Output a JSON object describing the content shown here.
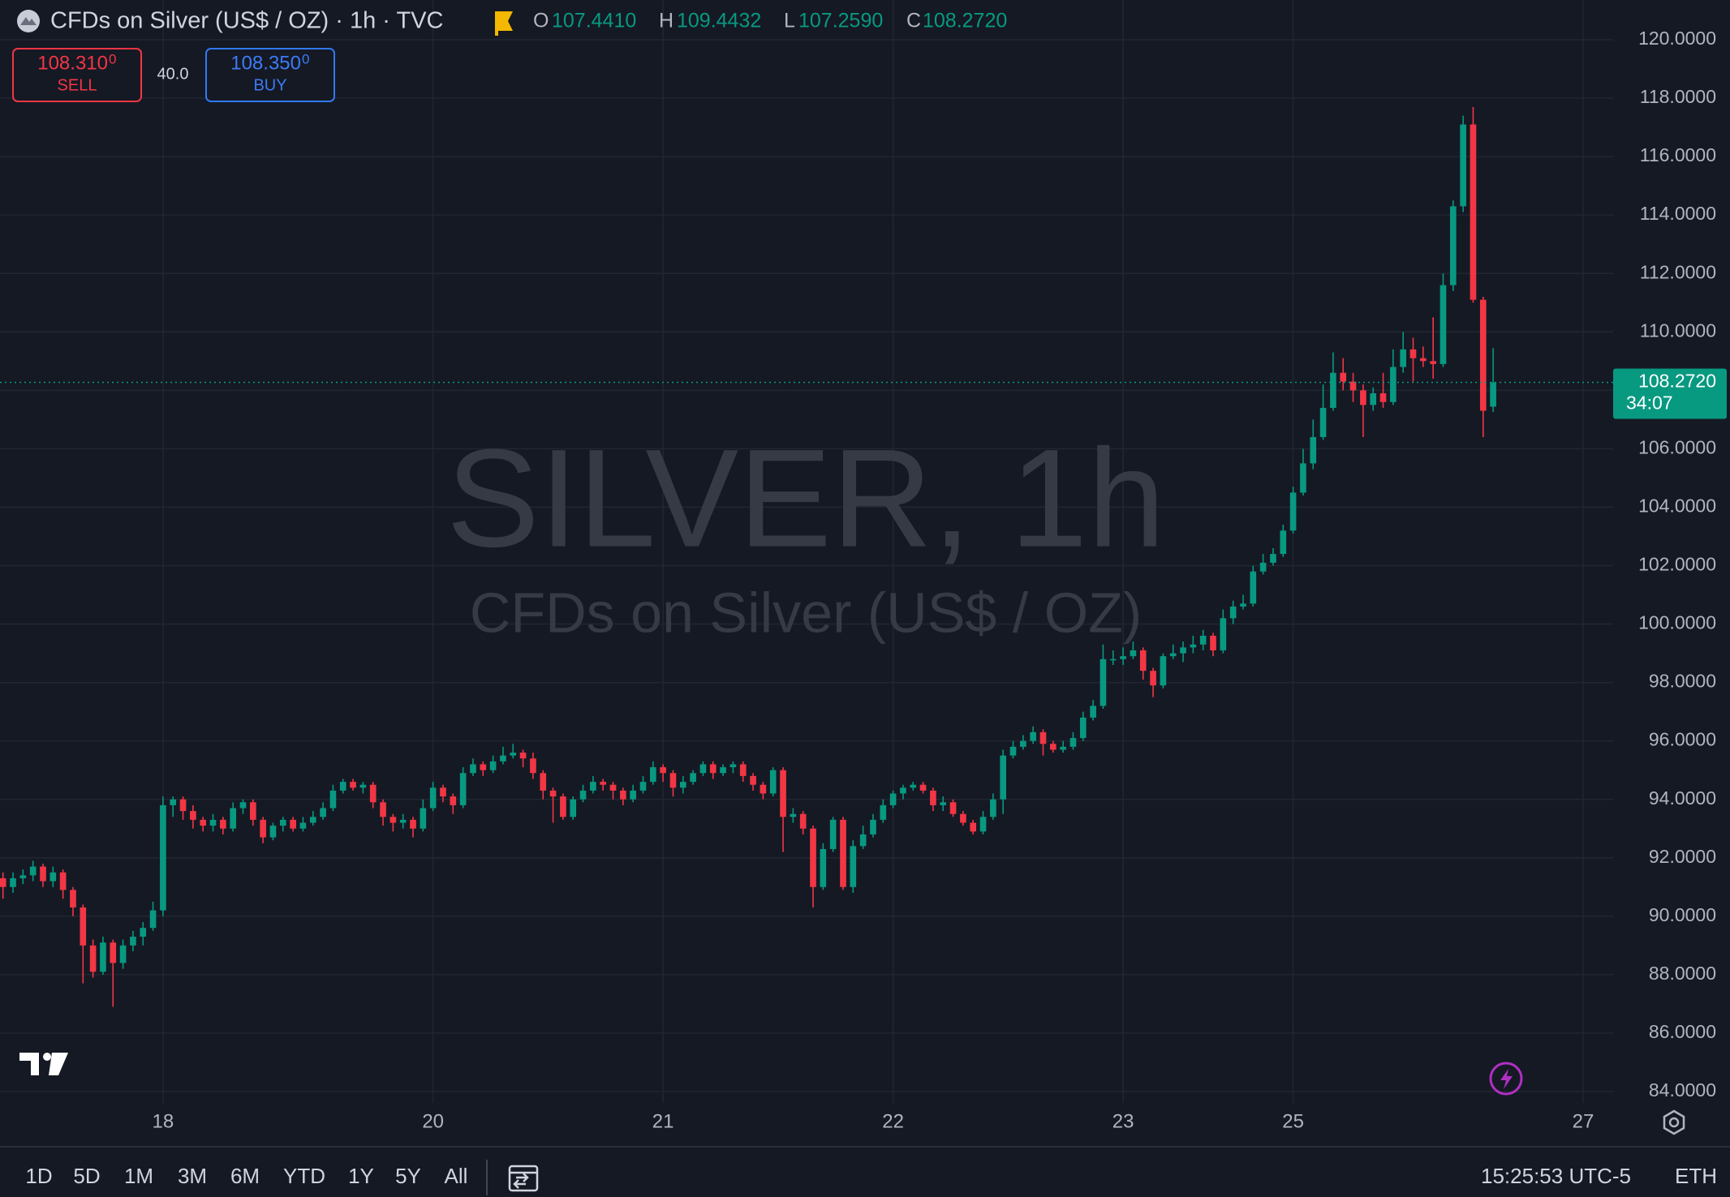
{
  "ui": {
    "symbol_title": "CFDs on Silver (US$ / OZ) · 1h · TVC",
    "ohlc_letters": [
      "O",
      "H",
      "L",
      "C"
    ],
    "sell": {
      "price": "108.310",
      "pip": "0",
      "label": "SELL"
    },
    "spread": "40.0",
    "buy": {
      "price": "108.350",
      "pip": "0",
      "label": "BUY"
    },
    "watermark_title": "SILVER, 1h",
    "watermark_subtitle": "CFDs on Silver (US$ / OZ)",
    "countdown": "34:07",
    "ranges": [
      "1D",
      "5D",
      "1M",
      "3M",
      "6M",
      "YTD",
      "1Y",
      "5Y",
      "All"
    ],
    "clock": "15:25:53 UTC-5",
    "session": "ETH"
  },
  "chart_data": {
    "type": "candlestick",
    "up_color": "#089981",
    "down_color": "#f23645",
    "grid": true,
    "open": [
      91.3,
      91.0,
      91.3,
      91.4,
      91.7,
      91.2,
      91.5,
      90.9,
      90.3,
      89.0,
      88.1,
      89.1,
      88.4,
      89.0,
      89.3,
      89.6,
      90.2,
      93.8,
      94.0,
      93.6,
      93.3,
      93.1,
      93.3,
      93.0,
      93.7,
      93.9,
      93.3,
      92.7,
      93.1,
      93.3,
      93.0,
      93.2,
      93.4,
      93.7,
      94.3,
      94.6,
      94.4,
      94.5,
      93.9,
      93.4,
      93.2,
      93.3,
      93.0,
      93.7,
      94.4,
      94.1,
      93.8,
      94.9,
      95.2,
      95.0,
      95.3,
      95.5,
      95.6,
      95.4,
      94.9,
      94.3,
      94.1,
      93.4,
      94.0,
      94.3,
      94.6,
      94.5,
      94.3,
      94.0,
      94.3,
      94.6,
      95.1,
      94.9,
      94.4,
      94.6,
      94.9,
      95.2,
      94.9,
      95.1,
      95.2,
      94.8,
      94.5,
      94.2,
      95.0,
      93.4,
      93.5,
      93.0,
      91.0,
      92.3,
      93.3,
      91.0,
      92.4,
      92.8,
      93.3,
      93.8,
      94.2,
      94.4,
      94.5,
      94.3,
      93.8,
      93.9,
      93.5,
      93.2,
      92.9,
      93.4,
      94.0,
      95.5,
      95.8,
      96.0,
      96.3,
      95.9,
      95.7,
      95.8,
      96.1,
      96.8,
      97.2,
      98.8,
      98.8,
      98.9,
      99.1,
      98.4,
      97.9,
      98.9,
      99.0,
      99.2,
      99.3,
      99.6,
      99.1,
      100.2,
      100.6,
      100.7,
      101.8,
      102.1,
      102.4,
      103.2,
      104.5,
      105.5,
      106.4,
      107.4,
      108.6,
      108.3,
      108.0,
      107.5,
      107.9,
      107.6,
      108.8,
      109.4,
      109.1,
      109.0,
      108.9,
      111.6,
      114.3,
      117.1,
      111.1,
      107.441
    ],
    "high": [
      91.5,
      91.5,
      91.6,
      91.9,
      91.8,
      91.7,
      91.6,
      91.0,
      90.4,
      89.2,
      89.3,
      89.2,
      89.2,
      89.5,
      89.8,
      90.5,
      94.1,
      94.1,
      94.1,
      93.8,
      93.4,
      93.5,
      93.4,
      93.9,
      94.0,
      94.0,
      93.4,
      93.2,
      93.4,
      93.4,
      93.4,
      93.6,
      93.9,
      94.5,
      94.7,
      94.7,
      94.6,
      94.6,
      94.0,
      93.5,
      93.5,
      93.4,
      94.0,
      94.6,
      94.5,
      94.2,
      95.1,
      95.4,
      95.3,
      95.5,
      95.8,
      95.9,
      95.7,
      95.6,
      95.0,
      94.4,
      94.2,
      94.1,
      94.5,
      94.8,
      94.7,
      94.6,
      94.4,
      94.5,
      94.8,
      95.3,
      95.2,
      95.0,
      94.8,
      95.0,
      95.3,
      95.3,
      95.2,
      95.3,
      95.3,
      94.9,
      94.6,
      95.1,
      95.1,
      93.7,
      93.6,
      93.1,
      92.5,
      93.4,
      93.4,
      92.6,
      93.1,
      93.5,
      94.0,
      94.3,
      94.5,
      94.6,
      94.6,
      94.4,
      94.1,
      94.0,
      93.6,
      93.3,
      93.6,
      94.2,
      95.7,
      96.0,
      96.2,
      96.5,
      96.4,
      96.0,
      96.0,
      96.3,
      97.0,
      97.4,
      99.3,
      99.1,
      99.2,
      99.4,
      99.2,
      98.5,
      99.0,
      99.3,
      99.4,
      99.6,
      99.8,
      99.7,
      100.5,
      100.8,
      101.0,
      102.0,
      102.4,
      102.6,
      103.4,
      104.7,
      106.0,
      107.0,
      108.2,
      109.3,
      109.1,
      108.6,
      108.2,
      108.1,
      108.6,
      109.4,
      110.0,
      109.8,
      109.5,
      110.5,
      112.0,
      114.5,
      117.4,
      117.7,
      111.2,
      109.4432
    ],
    "low": [
      90.6,
      90.8,
      91.1,
      91.2,
      91.0,
      91.0,
      90.6,
      90.0,
      87.7,
      87.9,
      88.0,
      86.9,
      88.2,
      88.8,
      89.0,
      89.5,
      90.0,
      93.4,
      93.3,
      93.0,
      92.9,
      92.9,
      92.8,
      92.9,
      93.5,
      93.1,
      92.5,
      92.6,
      92.9,
      92.9,
      92.9,
      93.1,
      93.3,
      93.6,
      94.2,
      94.3,
      94.2,
      93.7,
      93.1,
      92.9,
      93.0,
      92.7,
      92.9,
      93.6,
      93.9,
      93.5,
      93.7,
      94.8,
      94.8,
      94.9,
      95.2,
      95.4,
      95.1,
      94.7,
      94.0,
      93.2,
      93.3,
      93.3,
      93.9,
      94.2,
      94.3,
      94.0,
      93.8,
      93.9,
      94.2,
      94.5,
      94.6,
      94.1,
      94.2,
      94.5,
      94.8,
      94.7,
      94.8,
      94.9,
      94.6,
      94.3,
      94.0,
      94.1,
      92.2,
      93.2,
      92.8,
      90.3,
      90.9,
      92.2,
      90.9,
      90.8,
      92.3,
      92.7,
      93.2,
      93.7,
      94.0,
      94.3,
      94.2,
      93.6,
      93.6,
      93.4,
      93.1,
      92.8,
      92.8,
      93.3,
      93.5,
      95.4,
      95.7,
      95.9,
      95.5,
      95.6,
      95.6,
      95.7,
      96.0,
      96.7,
      97.1,
      98.6,
      98.6,
      98.8,
      98.1,
      97.5,
      97.8,
      98.8,
      98.7,
      99.0,
      99.1,
      98.9,
      99.0,
      100.0,
      100.5,
      100.6,
      101.7,
      102.0,
      102.3,
      103.1,
      104.4,
      105.3,
      106.3,
      107.3,
      108.0,
      107.6,
      106.4,
      107.3,
      107.4,
      107.5,
      108.6,
      108.3,
      108.8,
      108.4,
      108.8,
      111.4,
      114.1,
      111.0,
      106.4,
      107.259
    ],
    "close": [
      91.0,
      91.3,
      91.4,
      91.7,
      91.2,
      91.5,
      90.9,
      90.3,
      89.0,
      88.1,
      89.1,
      88.4,
      89.0,
      89.3,
      89.6,
      90.2,
      93.8,
      94.0,
      93.6,
      93.3,
      93.1,
      93.3,
      93.0,
      93.7,
      93.9,
      93.3,
      92.7,
      93.1,
      93.3,
      93.0,
      93.2,
      93.4,
      93.7,
      94.3,
      94.6,
      94.4,
      94.5,
      93.9,
      93.4,
      93.2,
      93.3,
      93.0,
      93.7,
      94.4,
      94.1,
      93.8,
      94.9,
      95.2,
      95.0,
      95.3,
      95.5,
      95.6,
      95.4,
      94.9,
      94.3,
      94.1,
      93.4,
      94.0,
      94.3,
      94.6,
      94.5,
      94.3,
      94.0,
      94.3,
      94.6,
      95.1,
      94.9,
      94.4,
      94.6,
      94.9,
      95.2,
      94.9,
      95.1,
      95.2,
      94.8,
      94.5,
      94.2,
      95.0,
      93.4,
      93.5,
      93.0,
      91.0,
      92.3,
      93.3,
      91.0,
      92.4,
      92.8,
      93.3,
      93.8,
      94.2,
      94.4,
      94.5,
      94.3,
      93.8,
      93.9,
      93.5,
      93.2,
      92.9,
      93.4,
      94.0,
      95.5,
      95.8,
      96.0,
      96.3,
      95.9,
      95.7,
      95.8,
      96.1,
      96.8,
      97.2,
      98.8,
      98.8,
      98.9,
      99.1,
      98.4,
      97.9,
      98.9,
      99.0,
      99.2,
      99.3,
      99.6,
      99.1,
      100.2,
      100.6,
      100.7,
      101.8,
      102.1,
      102.4,
      103.2,
      104.5,
      105.5,
      106.4,
      107.4,
      108.6,
      108.3,
      108.0,
      107.5,
      107.9,
      107.6,
      108.8,
      109.4,
      109.1,
      109.0,
      108.9,
      111.6,
      114.3,
      117.1,
      111.1,
      107.3,
      108.272
    ],
    "last_labels": {
      "open": "107.4410",
      "high": "109.4432",
      "low": "107.2590",
      "close": "108.2720"
    },
    "xlim": [
      -0.3,
      161
    ],
    "xticks": [
      {
        "value": 16,
        "label": "18"
      },
      {
        "value": 43,
        "label": "20"
      },
      {
        "value": 66,
        "label": "21"
      },
      {
        "value": 89,
        "label": "22"
      },
      {
        "value": 112,
        "label": "23"
      },
      {
        "value": 129,
        "label": "25"
      },
      {
        "value": 158,
        "label": "27"
      }
    ],
    "ylim": [
      83.61,
      121.36
    ],
    "yticks": [
      {
        "value": 84,
        "label": "84.0000"
      },
      {
        "value": 86,
        "label": "86.0000"
      },
      {
        "value": 88,
        "label": "88.0000"
      },
      {
        "value": 90,
        "label": "90.0000"
      },
      {
        "value": 92,
        "label": "92.0000"
      },
      {
        "value": 94,
        "label": "94.0000"
      },
      {
        "value": 96,
        "label": "96.0000"
      },
      {
        "value": 98,
        "label": "98.0000"
      },
      {
        "value": 100,
        "label": "100.0000"
      },
      {
        "value": 102,
        "label": "102.0000"
      },
      {
        "value": 104,
        "label": "104.0000"
      },
      {
        "value": 106,
        "label": "106.0000"
      },
      {
        "value": 108,
        "label": "108.0000"
      },
      {
        "value": 110,
        "label": "110.0000"
      },
      {
        "value": 112,
        "label": "112.0000"
      },
      {
        "value": 114,
        "label": "114.0000"
      },
      {
        "value": 116,
        "label": "116.0000"
      },
      {
        "value": 118,
        "label": "118.0000"
      },
      {
        "value": 120,
        "label": "120.0000"
      }
    ]
  }
}
